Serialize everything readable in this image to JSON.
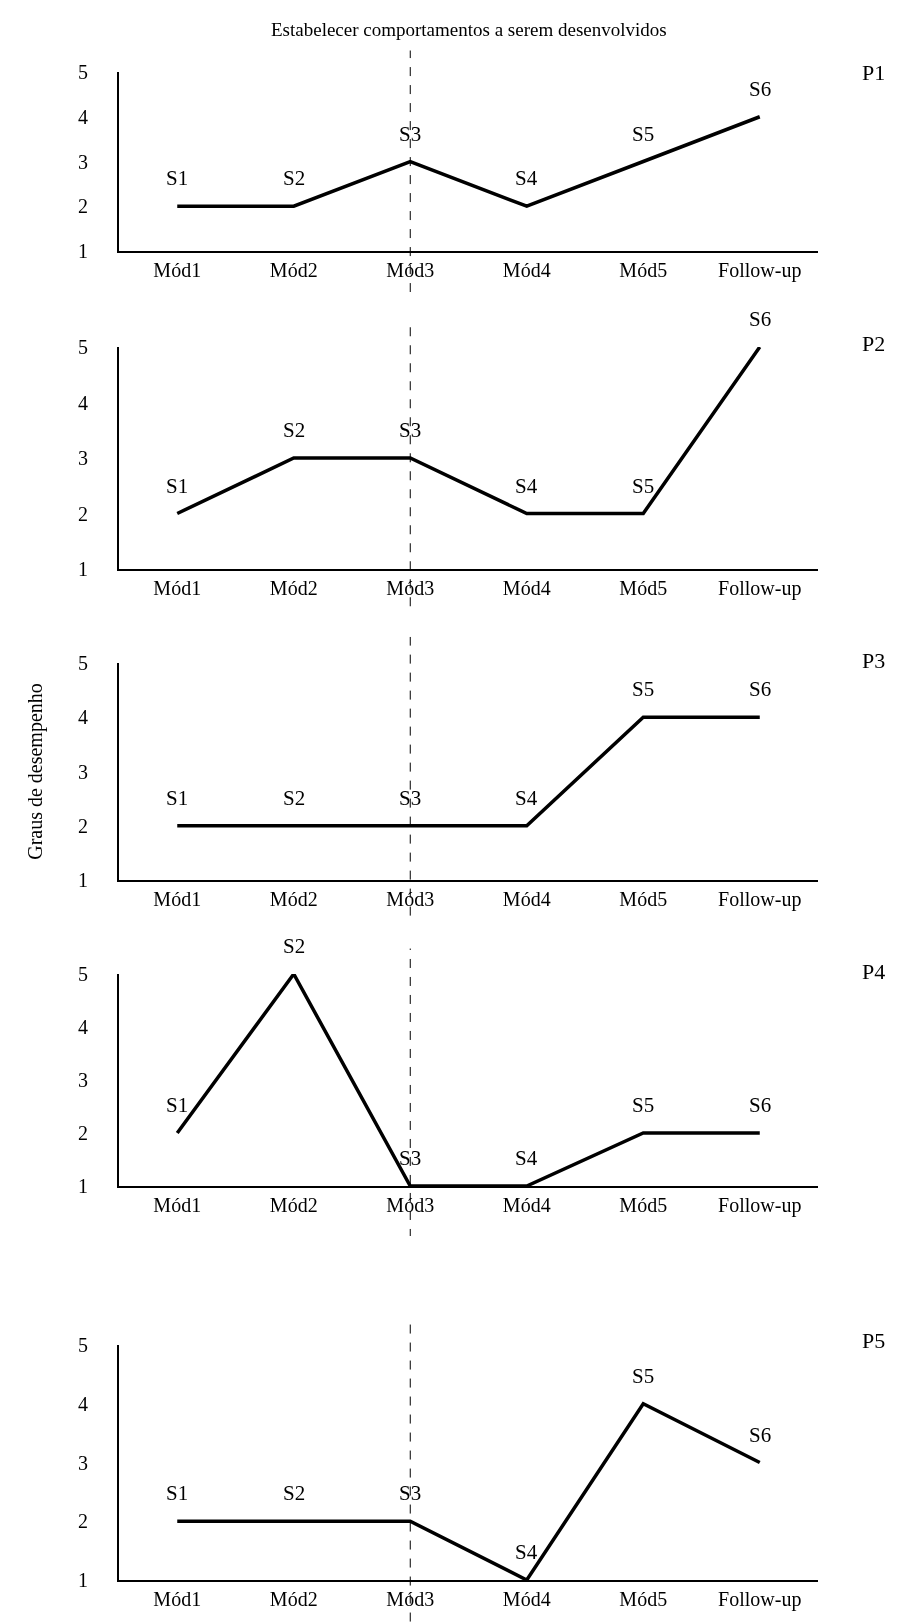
{
  "chart_data": [
    {
      "type": "line",
      "title": "Estabelecer comportamentos a serem desenvolvidos",
      "categories": [
        "Mód1",
        "Mód2",
        "Mód3",
        "Mód4",
        "Mód5",
        "Follow-up"
      ],
      "series": [
        {
          "color": "#000000",
          "values": [
            2,
            2,
            3,
            2,
            3,
            4
          ]
        }
      ],
      "ylim": [
        1,
        5
      ],
      "yticks": [
        1,
        2,
        3,
        4,
        5
      ],
      "grid": false,
      "ref_lines": [
        {
          "axis": "x",
          "value": "Mód3",
          "line_style": "dashed",
          "color": "#000000"
        }
      ],
      "annotations": [
        "P1",
        {
          "text": "S1",
          "x": "Mód1",
          "y": 2
        },
        {
          "text": "S2",
          "x": "Mód2",
          "y": 2
        },
        {
          "text": "S3",
          "x": "Mód3",
          "y": 3
        },
        {
          "text": "S4",
          "x": "Mód4",
          "y": 2
        },
        {
          "text": "S5",
          "x": "Mód5",
          "y": 3
        },
        {
          "text": "S6",
          "x": "Follow-up",
          "y": 4
        }
      ]
    },
    {
      "type": "line",
      "categories": [
        "Mód1",
        "Mód2",
        "Mód3",
        "Mód4",
        "Mód5",
        "Follow-up"
      ],
      "series": [
        {
          "color": "#000000",
          "values": [
            2,
            3,
            3,
            2,
            2,
            5
          ]
        }
      ],
      "ylim": [
        1,
        5
      ],
      "yticks": [
        1,
        2,
        3,
        4,
        5
      ],
      "grid": false,
      "ref_lines": [
        {
          "axis": "x",
          "value": "Mód3",
          "line_style": "dashed",
          "color": "#000000"
        }
      ],
      "annotations": [
        "P2",
        {
          "text": "S1",
          "x": "Mód1",
          "y": 2
        },
        {
          "text": "S2",
          "x": "Mód2",
          "y": 3
        },
        {
          "text": "S3",
          "x": "Mód3",
          "y": 3
        },
        {
          "text": "S4",
          "x": "Mód4",
          "y": 2
        },
        {
          "text": "S5",
          "x": "Mód5",
          "y": 2
        },
        {
          "text": "S6",
          "x": "Follow-up",
          "y": 5
        }
      ]
    },
    {
      "type": "line",
      "ylabel": "Graus de desempenho",
      "categories": [
        "Mód1",
        "Mód2",
        "Mód3",
        "Mód4",
        "Mód5",
        "Follow-up"
      ],
      "series": [
        {
          "color": "#000000",
          "values": [
            2,
            2,
            2,
            2,
            4,
            4
          ]
        }
      ],
      "ylim": [
        1,
        5
      ],
      "yticks": [
        1,
        2,
        3,
        4,
        5
      ],
      "grid": false,
      "ref_lines": [
        {
          "axis": "x",
          "value": "Mód3",
          "line_style": "dashed",
          "color": "#000000"
        }
      ],
      "annotations": [
        "P3",
        {
          "text": "S1",
          "x": "Mód1",
          "y": 2
        },
        {
          "text": "S2",
          "x": "Mód2",
          "y": 2
        },
        {
          "text": "S3",
          "x": "Mód3",
          "y": 2
        },
        {
          "text": "S4",
          "x": "Mód4",
          "y": 2
        },
        {
          "text": "S5",
          "x": "Mód5",
          "y": 4
        },
        {
          "text": "S6",
          "x": "Follow-up",
          "y": 4
        }
      ]
    },
    {
      "type": "line",
      "categories": [
        "Mód1",
        "Mód2",
        "Mód3",
        "Mód4",
        "Mód5",
        "Follow-up"
      ],
      "series": [
        {
          "color": "#000000",
          "values": [
            2,
            5,
            1,
            1,
            2,
            2
          ]
        }
      ],
      "ylim": [
        1,
        5
      ],
      "yticks": [
        1,
        2,
        3,
        4,
        5
      ],
      "grid": false,
      "ref_lines": [
        {
          "axis": "x",
          "value": "Mód3",
          "line_style": "dashed",
          "color": "#000000"
        }
      ],
      "annotations": [
        "P4",
        {
          "text": "S1",
          "x": "Mód1",
          "y": 2
        },
        {
          "text": "S2",
          "x": "Mód2",
          "y": 5
        },
        {
          "text": "S3",
          "x": "Mód3",
          "y": 1
        },
        {
          "text": "S4",
          "x": "Mód4",
          "y": 1
        },
        {
          "text": "S5",
          "x": "Mód5",
          "y": 2
        },
        {
          "text": "S6",
          "x": "Follow-up",
          "y": 2
        }
      ]
    },
    {
      "type": "line",
      "categories": [
        "Mód1",
        "Mód2",
        "Mód3",
        "Mód4",
        "Mód5",
        "Follow-up"
      ],
      "series": [
        {
          "color": "#000000",
          "values": [
            2,
            2,
            2,
            1,
            4,
            3
          ]
        }
      ],
      "ylim": [
        1,
        5
      ],
      "yticks": [
        1,
        2,
        3,
        4,
        5
      ],
      "grid": false,
      "ref_lines": [
        {
          "axis": "x",
          "value": "Mód3",
          "line_style": "dashed",
          "color": "#000000"
        }
      ],
      "annotations": [
        "P5",
        {
          "text": "S1",
          "x": "Mód1",
          "y": 2
        },
        {
          "text": "S2",
          "x": "Mód2",
          "y": 2
        },
        {
          "text": "S3",
          "x": "Mód3",
          "y": 2
        },
        {
          "text": "S4",
          "x": "Mód4",
          "y": 1
        },
        {
          "text": "S5",
          "x": "Mód5",
          "y": 4
        },
        {
          "text": "S6",
          "x": "Follow-up",
          "y": 3
        }
      ]
    }
  ]
}
